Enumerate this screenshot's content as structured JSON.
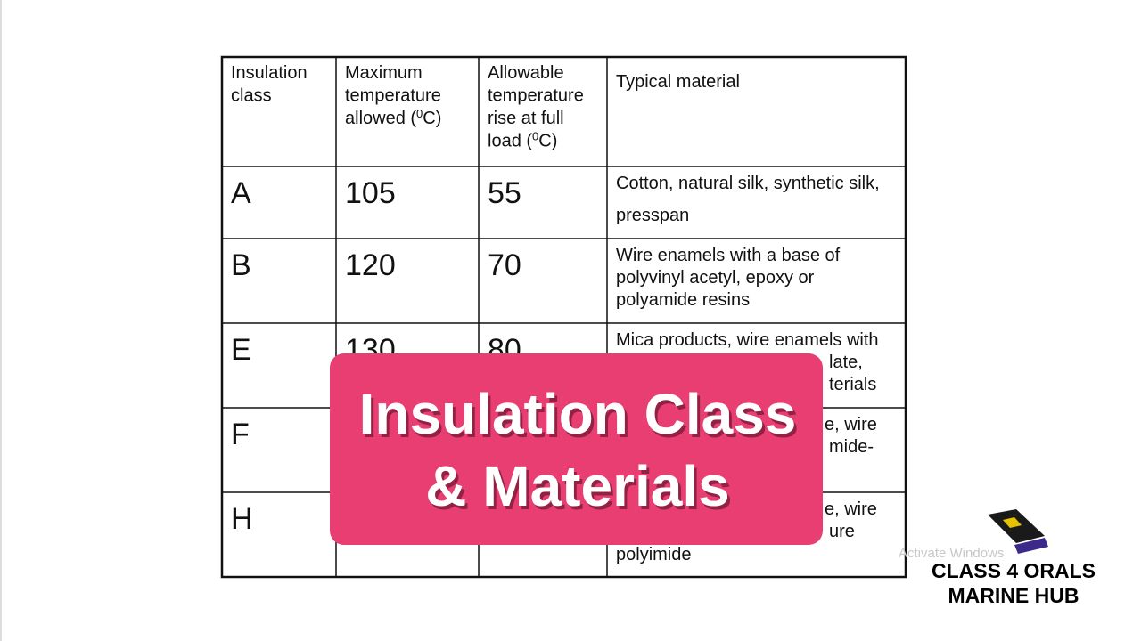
{
  "table": {
    "header": [
      {
        "lines": [
          "Insulation",
          "class"
        ]
      },
      {
        "lines": [
          "Maximum",
          "temperature",
          [
            "allowed (",
            "0",
            "C)"
          ]
        ]
      },
      {
        "lines": [
          "Allowable",
          "temperature",
          "rise at full",
          [
            "load (",
            "0",
            "C)"
          ]
        ]
      },
      {
        "lines": [
          "Typical material"
        ]
      }
    ],
    "rows": [
      {
        "class": "A",
        "max": 105,
        "rise": 55,
        "material": [
          "Cotton, natural silk, synthetic silk,",
          "presspan"
        ]
      },
      {
        "class": "B",
        "max": 120,
        "rise": 70,
        "material": [
          "Wire enamels with a base of",
          "polyvinyl acetyl, epoxy or",
          "polyamide resins"
        ]
      },
      {
        "class": "E",
        "max": 130,
        "rise": 80,
        "material": [
          "Mica products, wire enamels with",
          "late,",
          "terials"
        ]
      },
      {
        "class": "F",
        "material": [
          "e, wire",
          "mide-"
        ]
      },
      {
        "class": "H",
        "material": [
          "e, wire",
          "ure",
          "polyimide"
        ]
      }
    ]
  },
  "overlay": {
    "lines": [
      "Insulation Class",
      "& Materials"
    ]
  },
  "watermark": "Activate Windows",
  "logo": {
    "lines": [
      "CLASS 4 ORALS",
      "MARINE HUB"
    ]
  }
}
